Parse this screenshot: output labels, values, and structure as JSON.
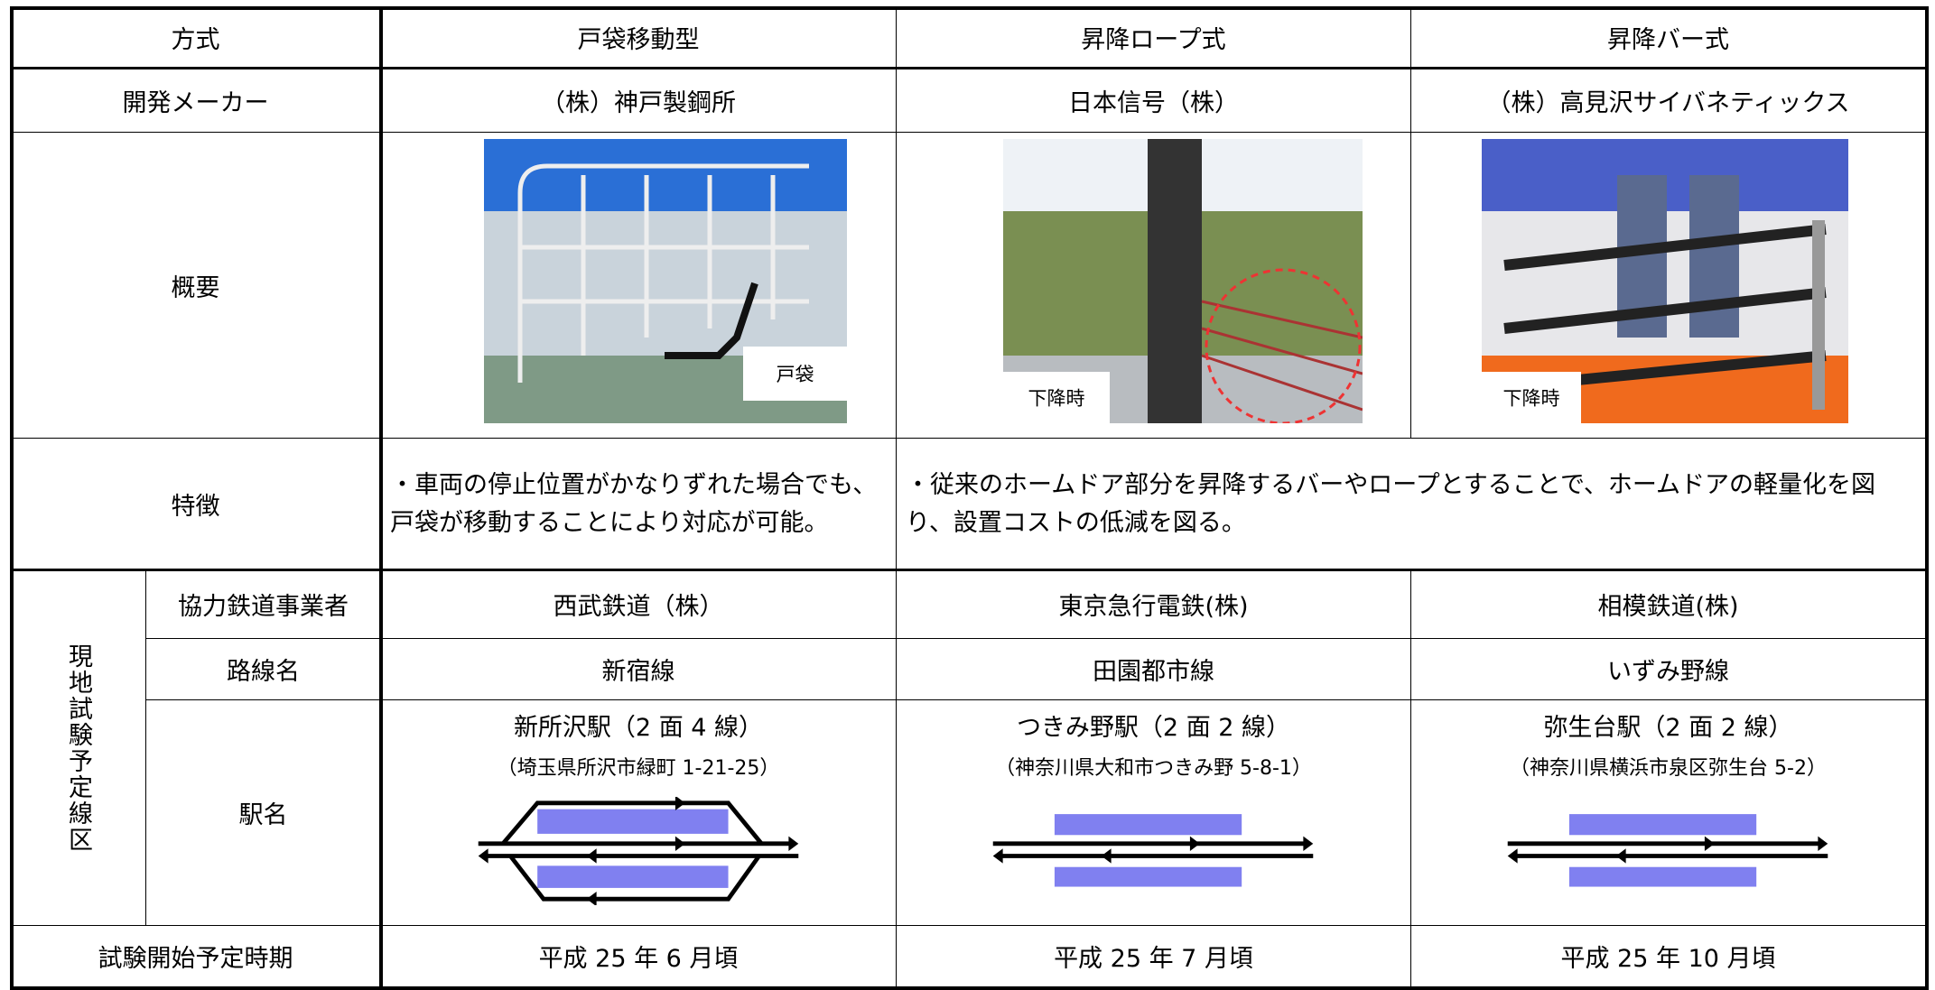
{
  "table": {
    "header": [
      "方式",
      "戸袋移動型",
      "昇降ロープ式",
      "昇降バー式"
    ],
    "maker": {
      "label": "開発メーカー",
      "cells": [
        "（株）神戸製鋼所",
        "日本信号（株）",
        "（株）高見沢サイバネティックス"
      ]
    },
    "overview": {
      "label": "概要",
      "photo_labels": [
        "戸袋",
        "下降時",
        "下降時"
      ]
    },
    "features": {
      "label": "特徴",
      "cells": [
        "・車両の停止位置がかなりずれた場合でも、戸袋が移動することにより対応が可能。",
        "・従来のホームドア部分を昇降するバーやロープとすることで、ホームドアの軽量化を図り、設置コストの低減を図る。"
      ]
    },
    "field_test": {
      "label": "現地試験予定線区",
      "operator": {
        "label": "協力鉄道事業者",
        "cells": [
          "西武鉄道（株）",
          "東京急行電鉄(株)",
          "相模鉄道(株)"
        ]
      },
      "line": {
        "label": "路線名",
        "cells": [
          "新宿線",
          "田園都市線",
          "いずみ野線"
        ]
      },
      "station": {
        "label": "駅名",
        "cells": [
          {
            "name": "新所沢駅（2 面 4 線）",
            "address": "（埼玉県所沢市緑町 1-21-25）"
          },
          {
            "name": "つきみ野駅（2 面 2 線）",
            "address": "（神奈川県大和市つきみ野 5-8-1）"
          },
          {
            "name": "弥生台駅（2 面 2 線）",
            "address": "（神奈川県横浜市泉区弥生台 5-2）"
          }
        ]
      }
    },
    "schedule": {
      "label": "試験開始予定時期",
      "cells": [
        "平成 25 年 6 月頃",
        "平成 25 年 7 月頃",
        "平成 25 年 10 月頃"
      ]
    }
  }
}
